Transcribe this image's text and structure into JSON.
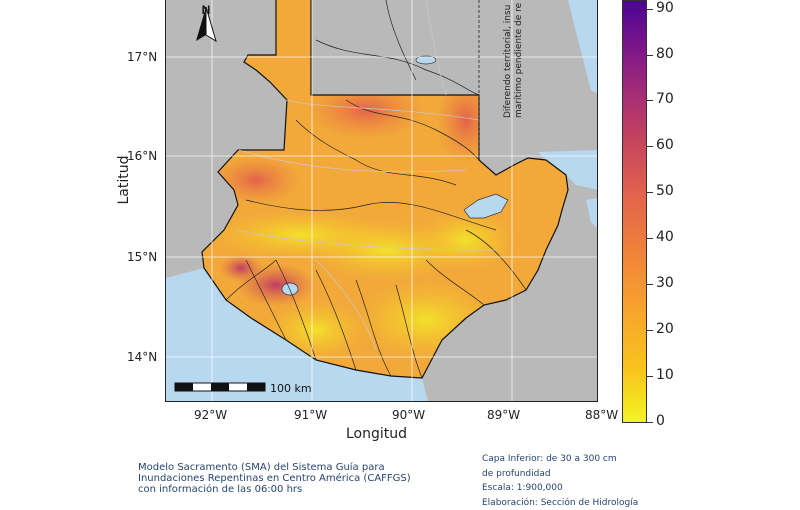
{
  "map": {
    "latitude_ticks": [
      "17°N",
      "16°N",
      "15°N",
      "14°N"
    ],
    "longitude_ticks": [
      "92°W",
      "91°W",
      "90°W",
      "89°W",
      "88°W"
    ],
    "xlabel": "Longitud",
    "ylabel": "Latitud",
    "scalebar_label": "100 km",
    "territorial_note_line1": "Diferendo territorial, insu",
    "territorial_note_line2": "marítimo pendiente de re",
    "north_arrow_icon": "north-arrow-icon"
  },
  "colorbar": {
    "ticks": [
      "0",
      "10",
      "20",
      "30",
      "40",
      "50",
      "60",
      "70",
      "80",
      "90"
    ],
    "colors": [
      "#f3f523",
      "#f8c51d",
      "#f9a52c",
      "#f0833a",
      "#e2634d",
      "#c8465c",
      "#a52d75",
      "#7c168a",
      "#4b0592"
    ]
  },
  "footer": {
    "left_line1": "Modelo Sacramento (SMA) del Sistema Guía para",
    "left_line2": "Inundaciones Repentinas en Centro América (CAFFGS)",
    "left_line3": "con información de las 06:00 hrs",
    "right_line1": "Capa Inferior: de 30 a 300 cm",
    "right_line2": "de profundidad",
    "right_line3": "Escala: 1:900,000",
    "right_line4": "Elaboración: Sección de Hidrología"
  },
  "colors": {
    "land_outside": "#b9b9b9",
    "water": "#b7d8ef",
    "country_fill": "#f2a93a",
    "border_line": "#111111"
  }
}
